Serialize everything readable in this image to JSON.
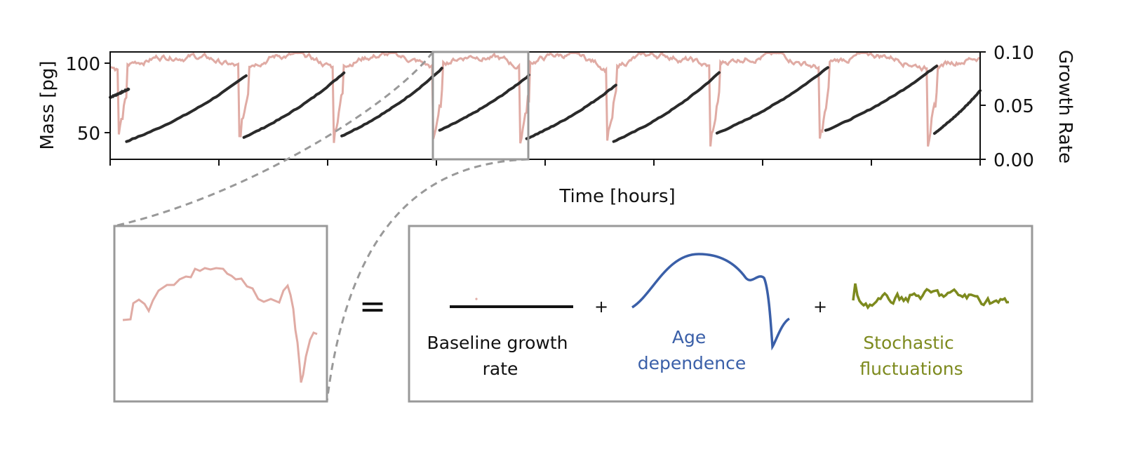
{
  "chart_data": {
    "type": "line",
    "title": "",
    "xlabel": "Time [hours]",
    "ylabel_left": "Mass [pg]",
    "ylabel_right": "Growth Rate",
    "ylim_left": [
      32,
      110
    ],
    "ylim_right": [
      0.0,
      0.1
    ],
    "yticks_left": [
      "50",
      "100"
    ],
    "yticks_right": [
      "0.00",
      "0.05",
      "0.10"
    ],
    "xticks_count": 9,
    "xlim": [
      0,
      8
    ],
    "grid": false,
    "series": [
      {
        "axis": "left",
        "color": "#2a2a2a",
        "cycles": [
          {
            "t_start": 0.0,
            "t_end": 0.17,
            "m_start": 77,
            "m_end": 83
          },
          {
            "t_start": 0.15,
            "t_end": 1.25,
            "m_start": 45,
            "m_end": 93
          },
          {
            "t_start": 1.23,
            "t_end": 2.15,
            "m_start": 48,
            "m_end": 95
          },
          {
            "t_start": 2.13,
            "t_end": 3.05,
            "m_start": 49,
            "m_end": 98
          },
          {
            "t_start": 3.03,
            "t_end": 3.85,
            "m_start": 53,
            "m_end": 93
          },
          {
            "t_start": 3.83,
            "t_end": 4.65,
            "m_start": 47,
            "m_end": 86
          },
          {
            "t_start": 4.63,
            "t_end": 5.6,
            "m_start": 45,
            "m_end": 95
          },
          {
            "t_start": 5.58,
            "t_end": 6.6,
            "m_start": 51,
            "m_end": 99
          },
          {
            "t_start": 6.58,
            "t_end": 7.6,
            "m_start": 53,
            "m_end": 100
          },
          {
            "t_start": 7.58,
            "t_end": 8.0,
            "m_start": 51,
            "m_end": 82
          }
        ]
      },
      {
        "axis": "right",
        "color": "#e0aba4",
        "divisions_t": [
          0.07,
          1.18,
          2.05,
          2.97,
          3.77,
          4.57,
          5.52,
          6.52,
          7.52
        ],
        "baseline": 0.085
      }
    ],
    "decomposition": {
      "equals": "=",
      "plus": "+",
      "baseline_label": "Baseline growth\nrate",
      "age_label": "Age\ndependence",
      "stochastic_label": "Stochastic\nfluctuations",
      "baseline_color": "#111111",
      "age_color": "#3a5fa8",
      "stochastic_color": "#7d8a1e",
      "zoom_box_color": "#999999"
    }
  }
}
